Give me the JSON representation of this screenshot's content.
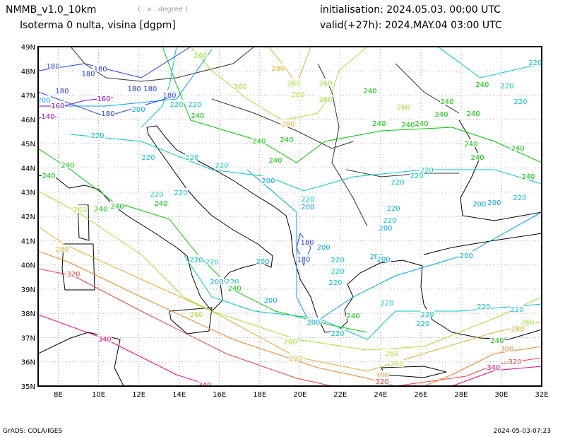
{
  "header": {
    "model": "NMMB_v1.0_10km",
    "unit_note": "( . x . degree )",
    "field": "Isoterma 0 nulta, visina [dgpm]",
    "initialisation": "initialisation: 2024.05.03.   00:00 UTC",
    "valid": "valid(+27h): 2024.MAY.04 03:00 UTC"
  },
  "footer": {
    "left": "GrADS: COLA/IGES",
    "right": "2024-05-03-07:23"
  },
  "map": {
    "lon_range": [
      7,
      32
    ],
    "lat_range": [
      35,
      49
    ],
    "lon_ticks": [
      {
        "v": 8,
        "label": "8E"
      },
      {
        "v": 10,
        "label": "10E"
      },
      {
        "v": 12,
        "label": "12E"
      },
      {
        "v": 14,
        "label": "14E"
      },
      {
        "v": 16,
        "label": "16E"
      },
      {
        "v": 18,
        "label": "18E"
      },
      {
        "v": 20,
        "label": "20E"
      },
      {
        "v": 22,
        "label": "22E"
      },
      {
        "v": 24,
        "label": "24E"
      },
      {
        "v": 26,
        "label": "26E"
      },
      {
        "v": 28,
        "label": "28E"
      },
      {
        "v": 30,
        "label": "30E"
      },
      {
        "v": 32,
        "label": "32E"
      }
    ],
    "lat_ticks": [
      {
        "v": 35,
        "label": "35N"
      },
      {
        "v": 36,
        "label": "36N"
      },
      {
        "v": 37,
        "label": "37N"
      },
      {
        "v": 38,
        "label": "38N"
      },
      {
        "v": 39,
        "label": "39N"
      },
      {
        "v": 40,
        "label": "40N"
      },
      {
        "v": 41,
        "label": "41N"
      },
      {
        "v": 42,
        "label": "42N"
      },
      {
        "v": 43,
        "label": "43N"
      },
      {
        "v": 44,
        "label": "44N"
      },
      {
        "v": 45,
        "label": "45N"
      },
      {
        "v": 46,
        "label": "46N"
      },
      {
        "v": 47,
        "label": "47N"
      },
      {
        "v": 48,
        "label": "48N"
      },
      {
        "v": 49,
        "label": "49N"
      }
    ],
    "level_colors": {
      "140": "#a000c8",
      "160": "#8200dc",
      "180": "#1e3cff",
      "200": "#00a0ff",
      "220": "#00c8c8",
      "240": "#00c800",
      "260": "#a0e632",
      "280": "#e6af2d",
      "300": "#f08228",
      "320": "#fa3c3c",
      "340": "#f00082"
    },
    "contour_labels": [
      {
        "t": "180",
        "lon": 7.74,
        "lat": 48.21
      },
      {
        "t": "180",
        "lon": 10.09,
        "lat": 48.1
      },
      {
        "t": "180",
        "lon": 9.49,
        "lat": 47.9
      },
      {
        "t": "180",
        "lon": 8.19,
        "lat": 47.19
      },
      {
        "t": "180",
        "lon": 11.77,
        "lat": 47.28
      },
      {
        "t": "180",
        "lon": 12.57,
        "lat": 47.28
      },
      {
        "t": "180",
        "lon": 13.52,
        "lat": 47.02
      },
      {
        "t": "180",
        "lon": 10.47,
        "lat": 46.26
      },
      {
        "t": "160",
        "lon": 10.26,
        "lat": 46.87
      },
      {
        "t": "160",
        "lon": 7.98,
        "lat": 46.58
      },
      {
        "t": "140",
        "lon": 7.49,
        "lat": 46.14
      },
      {
        "t": "200",
        "lon": 7.28,
        "lat": 46.81
      },
      {
        "t": "200",
        "lon": 11.98,
        "lat": 46.43
      },
      {
        "t": "220",
        "lon": 9.95,
        "lat": 45.35
      },
      {
        "t": "220",
        "lon": 13.87,
        "lat": 46.64
      },
      {
        "t": "220",
        "lon": 14.78,
        "lat": 46.64
      },
      {
        "t": "240",
        "lon": 14.92,
        "lat": 46.17
      },
      {
        "t": "260",
        "lon": 15.06,
        "lat": 48.65
      },
      {
        "t": "280",
        "lon": 18.92,
        "lat": 48.13
      },
      {
        "t": "260",
        "lon": 17.03,
        "lat": 47.37
      },
      {
        "t": "260",
        "lon": 19.69,
        "lat": 47.51
      },
      {
        "t": "260",
        "lon": 21.27,
        "lat": 47.51
      },
      {
        "t": "260",
        "lon": 19.9,
        "lat": 47.05
      },
      {
        "t": "260",
        "lon": 21.27,
        "lat": 46.84
      },
      {
        "t": "240",
        "lon": 23.48,
        "lat": 47.19
      },
      {
        "t": "240",
        "lon": 29.05,
        "lat": 47.45
      },
      {
        "t": "220",
        "lon": 30.28,
        "lat": 47.4
      },
      {
        "t": "220",
        "lon": 31.68,
        "lat": 48.36
      },
      {
        "t": "220",
        "lon": 30.95,
        "lat": 46.75
      },
      {
        "t": "260",
        "lon": 25.13,
        "lat": 46.52
      },
      {
        "t": "240",
        "lon": 27.3,
        "lat": 46.75
      },
      {
        "t": "240",
        "lon": 27.02,
        "lat": 46.23
      },
      {
        "t": "240",
        "lon": 26.04,
        "lat": 45.85
      },
      {
        "t": "240",
        "lon": 25.37,
        "lat": 45.79
      },
      {
        "t": "240",
        "lon": 23.93,
        "lat": 45.85
      },
      {
        "t": "240",
        "lon": 28.6,
        "lat": 46.26
      },
      {
        "t": "240",
        "lon": 28.49,
        "lat": 45.0
      },
      {
        "t": "240",
        "lon": 28.81,
        "lat": 44.45
      },
      {
        "t": "240",
        "lon": 30.81,
        "lat": 44.83
      },
      {
        "t": "240",
        "lon": 31.33,
        "lat": 43.66
      },
      {
        "t": "280",
        "lon": 19.41,
        "lat": 45.82
      },
      {
        "t": "240",
        "lon": 17.97,
        "lat": 45.12
      },
      {
        "t": "240",
        "lon": 19.34,
        "lat": 45.18
      },
      {
        "t": "240",
        "lon": 18.78,
        "lat": 44.33
      },
      {
        "t": "220",
        "lon": 12.47,
        "lat": 44.45
      },
      {
        "t": "220",
        "lon": 14.64,
        "lat": 44.45
      },
      {
        "t": "220",
        "lon": 16.12,
        "lat": 44.13
      },
      {
        "t": "240",
        "lon": 8.47,
        "lat": 44.13
      },
      {
        "t": "240",
        "lon": 7.53,
        "lat": 43.69
      },
      {
        "t": "220",
        "lon": 12.89,
        "lat": 42.93
      },
      {
        "t": "220",
        "lon": 14.08,
        "lat": 42.99
      },
      {
        "t": "240",
        "lon": 13.1,
        "lat": 42.56
      },
      {
        "t": "200",
        "lon": 18.43,
        "lat": 43.49
      },
      {
        "t": "220",
        "lon": 20.39,
        "lat": 42.73
      },
      {
        "t": "200",
        "lon": 20.39,
        "lat": 42.41
      },
      {
        "t": "220",
        "lon": 24.85,
        "lat": 43.43
      },
      {
        "t": "220",
        "lon": 25.8,
        "lat": 43.69
      },
      {
        "t": "220",
        "lon": 26.29,
        "lat": 43.93
      },
      {
        "t": "220",
        "lon": 30.91,
        "lat": 42.79
      },
      {
        "t": "200",
        "lon": 28.91,
        "lat": 42.53
      },
      {
        "t": "200",
        "lon": 29.65,
        "lat": 42.58
      },
      {
        "t": "220",
        "lon": 24.64,
        "lat": 42.35
      },
      {
        "t": "220",
        "lon": 24.46,
        "lat": 41.86
      },
      {
        "t": "200",
        "lon": 24.25,
        "lat": 41.53
      },
      {
        "t": "260",
        "lon": 9.07,
        "lat": 42.29
      },
      {
        "t": "240",
        "lon": 10.12,
        "lat": 42.32
      },
      {
        "t": "240",
        "lon": 10.93,
        "lat": 42.44
      },
      {
        "t": "180",
        "lon": 20.36,
        "lat": 40.95
      },
      {
        "t": "200",
        "lon": 21.17,
        "lat": 40.75
      },
      {
        "t": "180",
        "lon": 20.18,
        "lat": 40.25
      },
      {
        "t": "200",
        "lon": 18.15,
        "lat": 40.16
      },
      {
        "t": "220",
        "lon": 14.85,
        "lat": 40.22
      },
      {
        "t": "220",
        "lon": 15.63,
        "lat": 40.13
      },
      {
        "t": "220",
        "lon": 21.87,
        "lat": 40.22
      },
      {
        "t": "220",
        "lon": 21.87,
        "lat": 39.76
      },
      {
        "t": "200",
        "lon": 23.8,
        "lat": 40.37
      },
      {
        "t": "200",
        "lon": 24.15,
        "lat": 40.25
      },
      {
        "t": "200",
        "lon": 28.26,
        "lat": 40.4
      },
      {
        "t": "200",
        "lon": 15.87,
        "lat": 39.32
      },
      {
        "t": "220",
        "lon": 16.64,
        "lat": 39.32
      },
      {
        "t": "240",
        "lon": 16.75,
        "lat": 39.06
      },
      {
        "t": "220",
        "lon": 21.76,
        "lat": 39.29
      },
      {
        "t": "200",
        "lon": 18.54,
        "lat": 38.56
      },
      {
        "t": "200",
        "lon": 20.67,
        "lat": 37.66
      },
      {
        "t": "220",
        "lon": 24.32,
        "lat": 38.44
      },
      {
        "t": "220",
        "lon": 26.32,
        "lat": 37.98
      },
      {
        "t": "220",
        "lon": 26.1,
        "lat": 37.6
      },
      {
        "t": "220",
        "lon": 29.12,
        "lat": 38.3
      },
      {
        "t": "220",
        "lon": 30.77,
        "lat": 38.18
      },
      {
        "t": "240",
        "lon": 22.64,
        "lat": 37.92
      },
      {
        "t": "220",
        "lon": 21.87,
        "lat": 37.19
      },
      {
        "t": "260",
        "lon": 14.85,
        "lat": 37.98
      },
      {
        "t": "260",
        "lon": 31.3,
        "lat": 37.66
      },
      {
        "t": "280",
        "lon": 30.81,
        "lat": 37.37
      },
      {
        "t": "240",
        "lon": 29.79,
        "lat": 36.9
      },
      {
        "t": "300",
        "lon": 30.28,
        "lat": 36.55
      },
      {
        "t": "320",
        "lon": 30.67,
        "lat": 36.02
      },
      {
        "t": "340",
        "lon": 29.61,
        "lat": 35.79
      },
      {
        "t": "260",
        "lon": 24.57,
        "lat": 36.37
      },
      {
        "t": "260",
        "lon": 24.81,
        "lat": 35.93
      },
      {
        "t": "260",
        "lon": 19.52,
        "lat": 36.84
      },
      {
        "t": "280",
        "lon": 19.8,
        "lat": 36.17
      },
      {
        "t": "300",
        "lon": 24.08,
        "lat": 35.47
      },
      {
        "t": "320",
        "lon": 24.08,
        "lat": 35.21
      },
      {
        "t": "340",
        "lon": 15.27,
        "lat": 35.06
      },
      {
        "t": "340",
        "lon": 10.3,
        "lat": 36.96
      },
      {
        "t": "320",
        "lon": 8.75,
        "lat": 39.64
      },
      {
        "t": "280",
        "lon": 8.19,
        "lat": 40.66
      }
    ]
  }
}
